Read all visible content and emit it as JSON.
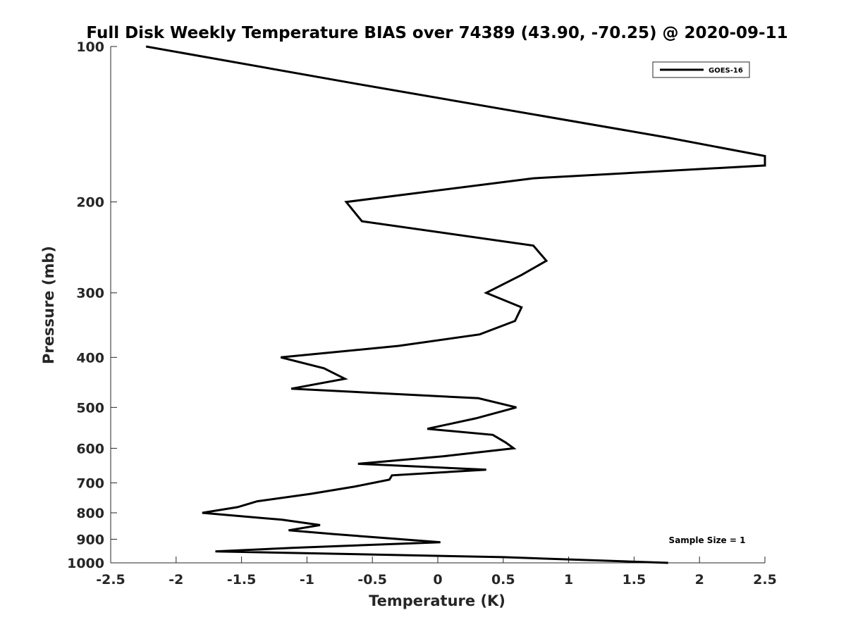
{
  "chart_data": {
    "type": "line",
    "title": "Full Disk Weekly Temperature BIAS over 74389 (43.90, -70.25) @ 2020-09-11",
    "xlabel": "Temperature (K)",
    "ylabel": "Pressure (mb)",
    "xlim": [
      -2.5,
      2.5
    ],
    "ylim": [
      100,
      1000
    ],
    "y_scale": "log",
    "y_reversed": true,
    "grid": false,
    "x_ticks": [
      -2.5,
      -2,
      -1.5,
      -1,
      -0.5,
      0,
      0.5,
      1,
      1.5,
      2,
      2.5
    ],
    "x_tick_labels": [
      "-2.5",
      "-2",
      "-1.5",
      "-1",
      "-0.5",
      "0",
      "0.5",
      "1",
      "1.5",
      "2",
      "2.5"
    ],
    "y_ticks": [
      100,
      200,
      300,
      400,
      500,
      600,
      700,
      800,
      900,
      1000
    ],
    "y_tick_labels": [
      "100",
      "200",
      "300",
      "400",
      "500",
      "600",
      "700",
      "800",
      "900",
      "1000"
    ],
    "legend": {
      "position": "top-right",
      "entries": [
        "GOES-16"
      ]
    },
    "annotation": "Sample Size = 1",
    "color": "#000000",
    "series": [
      {
        "name": "GOES-16",
        "points": [
          {
            "x": -2.23,
            "y": 100
          },
          {
            "x": -0.63,
            "y": 118
          },
          {
            "x": 1.75,
            "y": 150
          },
          {
            "x": 2.5,
            "y": 163
          },
          {
            "x": 2.5,
            "y": 170
          },
          {
            "x": 0.73,
            "y": 180
          },
          {
            "x": -0.7,
            "y": 200
          },
          {
            "x": -0.58,
            "y": 218
          },
          {
            "x": 0.73,
            "y": 243
          },
          {
            "x": 0.83,
            "y": 260
          },
          {
            "x": 0.64,
            "y": 277
          },
          {
            "x": 0.37,
            "y": 300
          },
          {
            "x": 0.64,
            "y": 320
          },
          {
            "x": 0.59,
            "y": 340
          },
          {
            "x": 0.32,
            "y": 361
          },
          {
            "x": -0.3,
            "y": 380
          },
          {
            "x": -1.2,
            "y": 400
          },
          {
            "x": -0.87,
            "y": 420
          },
          {
            "x": -0.71,
            "y": 440
          },
          {
            "x": -1.12,
            "y": 460
          },
          {
            "x": 0.31,
            "y": 480
          },
          {
            "x": 0.6,
            "y": 500
          },
          {
            "x": 0.29,
            "y": 525
          },
          {
            "x": -0.08,
            "y": 550
          },
          {
            "x": 0.42,
            "y": 565
          },
          {
            "x": 0.52,
            "y": 585
          },
          {
            "x": 0.58,
            "y": 600
          },
          {
            "x": 0.04,
            "y": 622
          },
          {
            "x": -0.61,
            "y": 643
          },
          {
            "x": 0.37,
            "y": 660
          },
          {
            "x": -0.35,
            "y": 677
          },
          {
            "x": -0.37,
            "y": 690
          },
          {
            "x": -0.64,
            "y": 712
          },
          {
            "x": -0.97,
            "y": 735
          },
          {
            "x": -1.38,
            "y": 760
          },
          {
            "x": -1.53,
            "y": 780
          },
          {
            "x": -1.8,
            "y": 800
          },
          {
            "x": -1.19,
            "y": 825
          },
          {
            "x": -0.9,
            "y": 845
          },
          {
            "x": -1.14,
            "y": 865
          },
          {
            "x": -0.79,
            "y": 880
          },
          {
            "x": 0.02,
            "y": 912
          },
          {
            "x": -1.1,
            "y": 935
          },
          {
            "x": -1.7,
            "y": 950
          },
          {
            "x": 0.5,
            "y": 975
          },
          {
            "x": 1.76,
            "y": 1000
          }
        ]
      }
    ]
  }
}
